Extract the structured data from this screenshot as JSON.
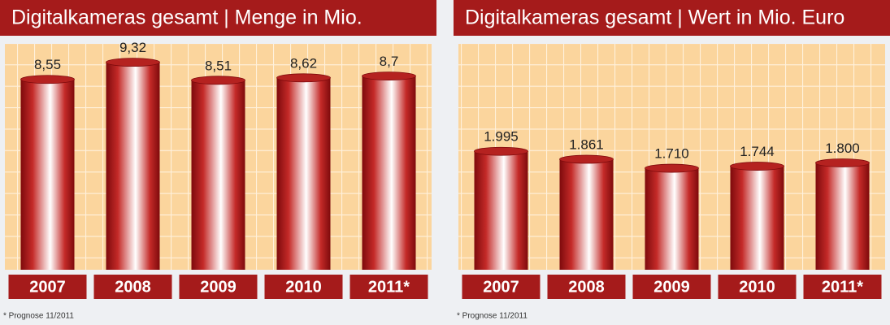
{
  "chart_data": [
    {
      "type": "bar",
      "title": "Digitalkameras gesamt | Menge in Mio.",
      "categories": [
        "2007",
        "2008",
        "2009",
        "2010",
        "2011*"
      ],
      "values": [
        8.55,
        9.32,
        8.51,
        8.62,
        8.7
      ],
      "value_labels": [
        "8,55",
        "9,32",
        "8,51",
        "8,62",
        "8,7"
      ],
      "ylim": [
        0,
        10
      ],
      "color": "#a51b1b",
      "note": "* Prognose 11/2011"
    },
    {
      "type": "bar",
      "title": "Digitalkameras gesamt | Wert in Mio. Euro",
      "categories": [
        "2007",
        "2008",
        "2009",
        "2010",
        "2011*"
      ],
      "values": [
        1995,
        1861,
        1710,
        1744,
        1800
      ],
      "value_labels": [
        "1.995",
        "1.861",
        "1.710",
        "1.744",
        "1.800"
      ],
      "ylim": [
        0,
        3750
      ],
      "color": "#a51b1b",
      "note": "* Prognose 11/2011"
    }
  ]
}
